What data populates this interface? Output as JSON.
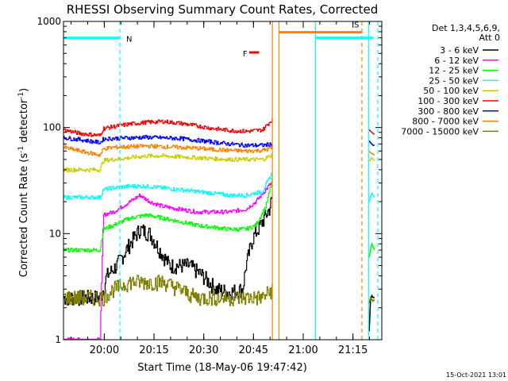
{
  "chart_data": {
    "type": "line",
    "title": "RHESSI Observing Summary Count Rates, Corrected",
    "xlabel": "Start Time (18-May-06 19:47:42)",
    "ylabel": "Corrected Count Rate (s",
    "ylabel_sup": "-1",
    "ylabel_tail": " detector",
    "ylabel_close": ")",
    "y_scale": "log",
    "ylim": [
      1,
      1000
    ],
    "xlim_minutes": [
      0,
      96
    ],
    "x_ticks": [
      {
        "label": "20:00",
        "minutes": 12.3
      },
      {
        "label": "20:15",
        "minutes": 27.3
      },
      {
        "label": "20:30",
        "minutes": 42.3
      },
      {
        "label": "20:45",
        "minutes": 57.3
      },
      {
        "label": "21:00",
        "minutes": 72.3
      },
      {
        "label": "21:15",
        "minutes": 87.3
      }
    ],
    "y_ticks": [
      {
        "label": "1",
        "value": 1
      },
      {
        "label": "10",
        "value": 10
      },
      {
        "label": "100",
        "value": 100
      },
      {
        "label": "1000",
        "value": 1000
      }
    ],
    "legend_header": [
      "Det 1,3,4,5,6,9,",
      "Att 0"
    ],
    "series": [
      {
        "name": "3 - 6 keV",
        "color": "#000000",
        "x": [
          0,
          11,
          12,
          13,
          16,
          20,
          23,
          26,
          29,
          32,
          35,
          38,
          42,
          46,
          50,
          54,
          55,
          57,
          60,
          62,
          63
        ],
        "y": [
          2.5,
          2.5,
          3,
          4,
          5,
          8,
          11,
          10,
          7,
          5,
          5,
          5,
          4,
          3,
          2.8,
          3,
          5,
          9,
          13,
          17,
          22
        ]
      },
      {
        "name": "6 - 12 keV",
        "color": "#ff00ff",
        "x": [
          0,
          11,
          12,
          15,
          20,
          23,
          26,
          30,
          35,
          40,
          45,
          50,
          55,
          58,
          61,
          63
        ],
        "y": [
          1,
          1,
          15,
          16,
          20,
          23,
          20,
          18,
          17,
          16,
          16,
          16,
          17,
          20,
          26,
          31
        ]
      },
      {
        "name": "12 - 25 keV",
        "color": "#00ff00",
        "x": [
          0,
          11,
          12,
          15,
          20,
          25,
          30,
          35,
          40,
          45,
          50,
          55,
          58,
          61,
          63
        ],
        "y": [
          7,
          7,
          11,
          12,
          14,
          15,
          14,
          13,
          12,
          11.5,
          11,
          11,
          12,
          18,
          33
        ]
      },
      {
        "name": "25 - 50 keV",
        "color": "#00ffff",
        "x": [
          0,
          11,
          12,
          15,
          20,
          25,
          30,
          35,
          40,
          45,
          50,
          55,
          60,
          63
        ],
        "y": [
          22,
          22,
          26,
          27,
          28,
          28,
          27,
          26,
          25,
          24,
          23,
          23,
          25,
          38
        ]
      },
      {
        "name": "50 - 100 keV",
        "color": "#cccc00",
        "x": [
          0,
          11,
          12,
          15,
          20,
          25,
          30,
          35,
          40,
          45,
          50,
          55,
          60,
          63
        ],
        "y": [
          40,
          40,
          49,
          50,
          52,
          54,
          54,
          53,
          52,
          51,
          50,
          50,
          50,
          55
        ]
      },
      {
        "name": "100 - 300 keV",
        "color": "#ff0000",
        "x": [
          0,
          5,
          11,
          12,
          15,
          20,
          25,
          30,
          35,
          40,
          45,
          50,
          55,
          60,
          63
        ],
        "y": [
          95,
          88,
          84,
          98,
          102,
          108,
          112,
          114,
          110,
          104,
          98,
          94,
          92,
          95,
          120
        ]
      },
      {
        "name": "300 - 800 keV",
        "color": "#0000ff",
        "x": [
          0,
          5,
          11,
          12,
          15,
          20,
          25,
          30,
          35,
          40,
          45,
          50,
          55,
          60,
          63
        ],
        "y": [
          80,
          77,
          72,
          78,
          79,
          80,
          81,
          80,
          79,
          76,
          73,
          70,
          68,
          68,
          70
        ]
      },
      {
        "name": "800 - 7000 keV",
        "color": "#ff8000",
        "x": [
          0,
          5,
          11,
          12,
          15,
          20,
          25,
          30,
          35,
          40,
          45,
          50,
          55,
          60,
          63
        ],
        "y": [
          65,
          60,
          55,
          63,
          65,
          66,
          67,
          66,
          65,
          64,
          62,
          61,
          60,
          61,
          64
        ]
      },
      {
        "name": "7000 - 15000 keV",
        "color": "#808000",
        "x": [
          0,
          11,
          12,
          15,
          20,
          25,
          30,
          35,
          40,
          45,
          50,
          55,
          60,
          63
        ],
        "y": [
          2.5,
          2.5,
          2.5,
          3,
          3.5,
          3.5,
          3.5,
          3,
          2.5,
          2.5,
          2.5,
          2.5,
          2.5,
          3
        ]
      }
    ],
    "tail_segment": {
      "x": [
        92.2,
        92.6,
        93.0,
        93.4,
        93.8
      ],
      "values": {
        "3 - 6 keV": [
          1.2,
          2.4,
          2.6,
          2.5,
          2.5
        ],
        "12 - 25 keV": [
          6,
          7,
          8,
          7.5,
          7
        ],
        "25 - 50 keV": [
          20,
          22,
          24,
          23,
          22
        ],
        "50 - 100 keV": [
          48,
          50,
          52,
          50,
          49
        ],
        "100 - 300 keV": [
          96,
          92,
          90,
          88,
          86
        ],
        "300 - 800 keV": [
          75,
          72,
          70,
          68,
          68
        ],
        "800 - 7000 keV": [
          60,
          58,
          57,
          56,
          55
        ],
        "7000 - 15000 keV": [
          2.2,
          2.5,
          2.4,
          2.3,
          2.4
        ]
      }
    },
    "flag_bars": [
      {
        "label": "N",
        "color": "#00ffff",
        "segments": [
          [
            0,
            17
          ],
          [
            76,
            93.5
          ]
        ],
        "level": 700
      },
      {
        "label": "S",
        "color": "#ff8000",
        "segments": [
          [
            65,
            90
          ]
        ],
        "level": 790
      },
      {
        "label": "F",
        "color": "#ff0000",
        "segments": [
          [
            56,
            59
          ]
        ],
        "level": 510
      }
    ],
    "vertical_markers": [
      {
        "minutes": 17,
        "color": "#00ffff",
        "style": "dashed"
      },
      {
        "minutes": 63,
        "color": "#ff8000",
        "style": "solid"
      },
      {
        "minutes": 65,
        "color": "#ff8000",
        "style": "solid"
      },
      {
        "minutes": 76,
        "color": "#00ffff",
        "style": "solid"
      },
      {
        "minutes": 90,
        "color": "#ff8000",
        "style": "dashed"
      },
      {
        "minutes": 92,
        "color": "#00ffff",
        "style": "solid"
      },
      {
        "minutes": 94.8,
        "color": "#00ffff",
        "style": "dashed"
      }
    ],
    "footer_date": "15-Oct-2021 13:01"
  }
}
